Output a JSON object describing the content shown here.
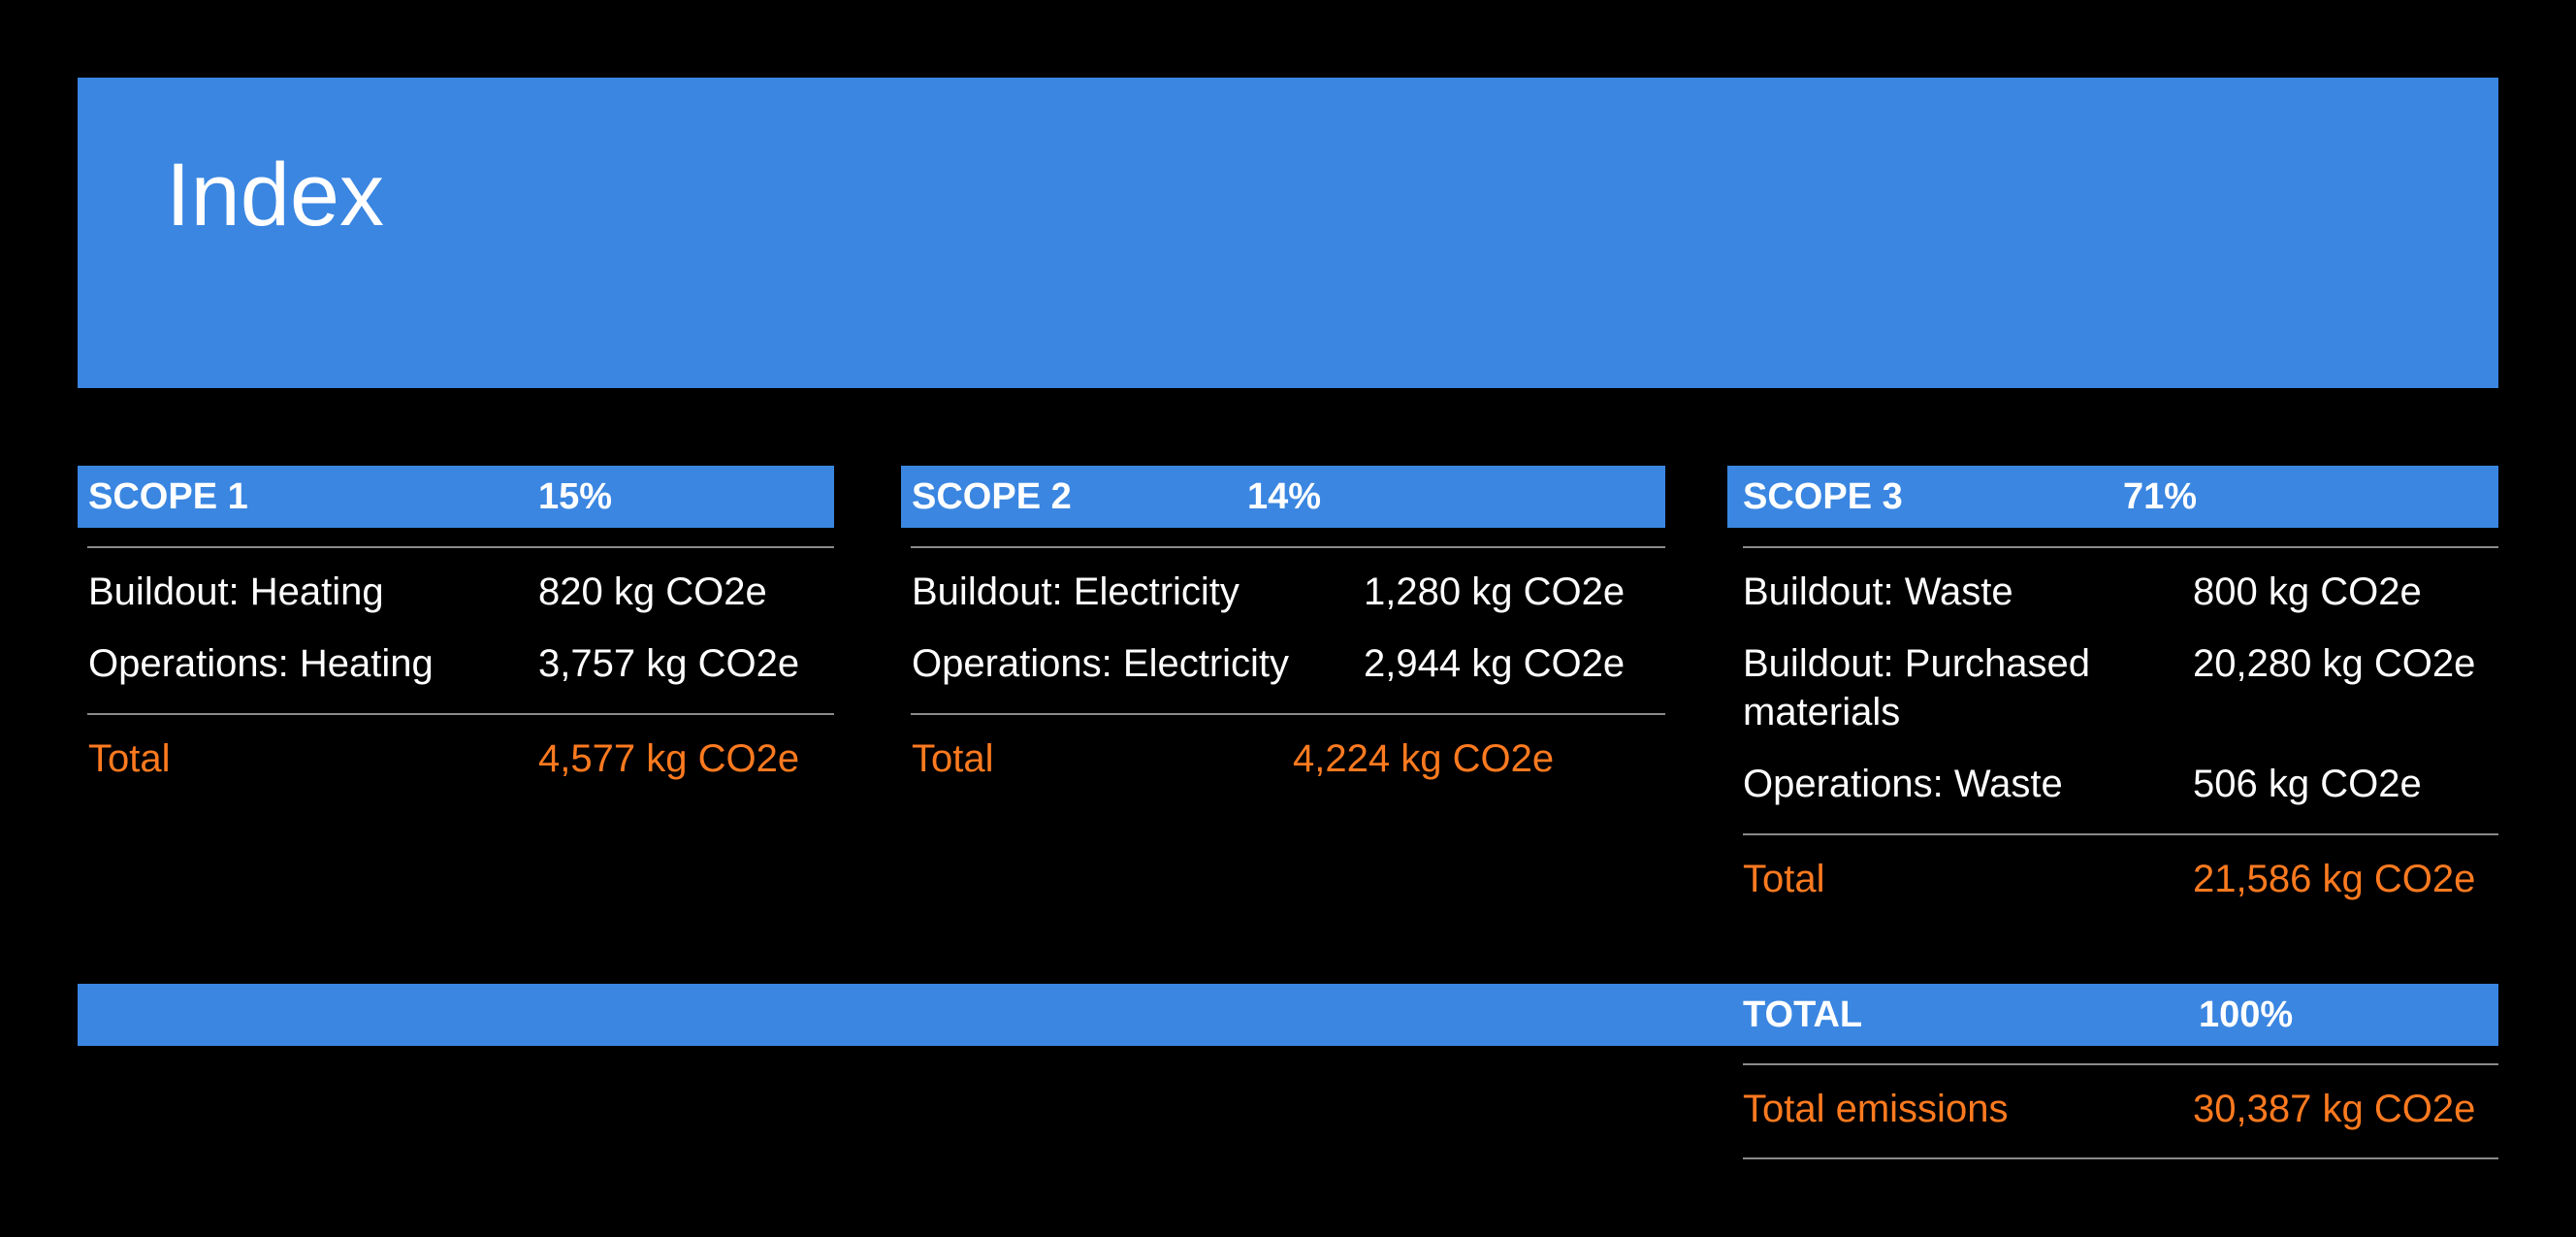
{
  "title": "Index",
  "colors": {
    "background": "#000000",
    "accent_blue": "#3a86e1",
    "total_orange": "#ff7a1f",
    "text": "#ffffff"
  },
  "scopes": [
    {
      "heading": "SCOPE 1",
      "percent": "15%",
      "rows": [
        {
          "label": "Buildout: Heating",
          "value": "820 kg CO2e"
        },
        {
          "label": "Operations: Heating",
          "value": "3,757 kg CO2e"
        }
      ],
      "total_label": "Total",
      "total_value": "4,577 kg CO2e"
    },
    {
      "heading": "SCOPE 2",
      "percent": "14%",
      "rows": [
        {
          "label": "Buildout: Electricity",
          "value": "1,280 kg CO2e"
        },
        {
          "label": "Operations: Electricity",
          "value": "2,944 kg CO2e"
        }
      ],
      "total_label": "Total",
      "total_value": "4,224 kg CO2e"
    },
    {
      "heading": "SCOPE 3",
      "percent": "71%",
      "rows": [
        {
          "label": "Buildout: Waste",
          "value": "800 kg CO2e"
        },
        {
          "label": "Buildout: Purchased materials",
          "value": "20,280 kg CO2e"
        },
        {
          "label": "Operations: Waste",
          "value": "506 kg CO2e"
        }
      ],
      "total_label": "Total",
      "total_value": "21,586 kg CO2e"
    }
  ],
  "grand_total": {
    "heading": "TOTAL",
    "percent": "100%",
    "label": "Total emissions",
    "value": "30,387 kg CO2e"
  }
}
